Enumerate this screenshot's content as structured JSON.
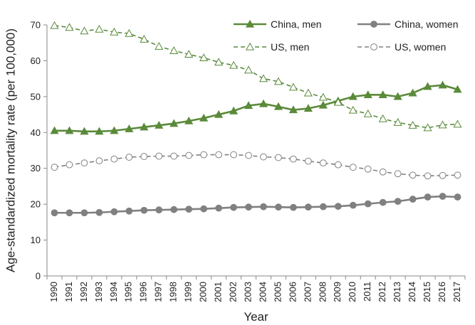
{
  "chart_data": {
    "type": "line",
    "xlabel": "Year",
    "ylabel": "Age-standardized mortality rate (per 100,000)",
    "ylim": [
      0,
      70
    ],
    "yticks": [
      0,
      10,
      20,
      30,
      40,
      50,
      60,
      70
    ],
    "x": [
      "1990",
      "1991",
      "1992",
      "1993",
      "1994",
      "1995",
      "1996",
      "1997",
      "1998",
      "1999",
      "2000",
      "2001",
      "2002",
      "2003",
      "2004",
      "2005",
      "2006",
      "2007",
      "2008",
      "2009",
      "2010",
      "2011",
      "2012",
      "2013",
      "2014",
      "2015",
      "2016",
      "2017"
    ],
    "grid": false,
    "legend_position": "top-right",
    "series": [
      {
        "name": "China, men",
        "color": "#5a8a3a",
        "line": "solid",
        "marker": "filled-triangle",
        "values": [
          40.5,
          40.5,
          40.3,
          40.3,
          40.5,
          41.0,
          41.5,
          42.0,
          42.5,
          43.2,
          44.0,
          45.0,
          46.0,
          47.5,
          48.0,
          47.2,
          46.3,
          46.7,
          47.6,
          48.8,
          50.0,
          50.5,
          50.5,
          50.0,
          51.0,
          52.8,
          53.2,
          52.0
        ]
      },
      {
        "name": "China, women",
        "color": "#808080",
        "line": "solid",
        "marker": "filled-circle",
        "values": [
          17.6,
          17.6,
          17.6,
          17.7,
          17.9,
          18.1,
          18.3,
          18.4,
          18.5,
          18.6,
          18.7,
          18.9,
          19.1,
          19.2,
          19.3,
          19.2,
          19.1,
          19.2,
          19.3,
          19.4,
          19.7,
          20.1,
          20.5,
          20.8,
          21.4,
          22.0,
          22.2,
          22.0
        ]
      },
      {
        "name": "US, men",
        "color": "#5a8a3a",
        "line": "dashed",
        "marker": "open-triangle",
        "values": [
          69.8,
          69.3,
          68.3,
          68.8,
          68.0,
          67.6,
          66.0,
          64.0,
          62.8,
          61.8,
          60.8,
          59.6,
          58.7,
          57.4,
          55.0,
          54.2,
          52.6,
          51.0,
          49.8,
          48.4,
          46.2,
          45.2,
          43.8,
          42.8,
          42.0,
          41.3,
          42.1,
          42.3
        ]
      },
      {
        "name": "US, women",
        "color": "#808080",
        "line": "dashed",
        "marker": "open-circle",
        "values": [
          30.3,
          31.0,
          31.5,
          32.1,
          32.6,
          33.1,
          33.3,
          33.4,
          33.4,
          33.6,
          33.8,
          33.8,
          33.8,
          33.6,
          33.2,
          33.0,
          32.6,
          32.0,
          31.5,
          31.0,
          30.3,
          29.8,
          29.0,
          28.5,
          28.1,
          27.9,
          28.0,
          28.1
        ]
      }
    ]
  }
}
